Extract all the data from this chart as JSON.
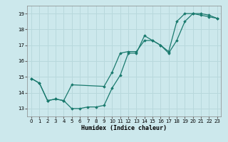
{
  "title": "",
  "xlabel": "Humidex (Indice chaleur)",
  "xlim": [
    -0.5,
    23.5
  ],
  "ylim": [
    12.5,
    19.5
  ],
  "yticks": [
    13,
    14,
    15,
    16,
    17,
    18,
    19
  ],
  "xticks": [
    0,
    1,
    2,
    3,
    4,
    5,
    6,
    7,
    8,
    9,
    10,
    11,
    12,
    13,
    14,
    15,
    16,
    17,
    18,
    19,
    20,
    21,
    22,
    23
  ],
  "line_color": "#1a7a6e",
  "bg_color": "#cce8ec",
  "grid_color": "#b8d8dc",
  "series1_x": [
    0,
    1,
    2,
    3,
    4,
    5,
    6,
    7,
    8,
    9,
    10,
    11,
    12,
    13,
    14,
    15,
    16,
    17,
    18,
    19,
    20,
    21,
    22,
    23
  ],
  "series1_y": [
    14.9,
    14.6,
    13.5,
    13.6,
    13.5,
    13.0,
    13.0,
    13.1,
    13.1,
    13.2,
    14.3,
    15.1,
    16.5,
    16.5,
    17.6,
    17.3,
    17.0,
    16.6,
    18.5,
    19.0,
    19.0,
    18.9,
    18.8,
    18.7
  ],
  "series2_x": [
    0,
    1,
    2,
    3,
    4,
    5,
    9,
    10,
    11,
    12,
    13,
    14,
    15,
    16,
    17,
    18,
    19,
    20,
    21,
    22,
    23
  ],
  "series2_y": [
    14.9,
    14.6,
    13.5,
    13.6,
    13.5,
    14.5,
    14.4,
    15.3,
    16.5,
    16.6,
    16.6,
    17.3,
    17.3,
    17.0,
    16.5,
    17.3,
    18.5,
    19.0,
    19.0,
    18.9,
    18.7
  ],
  "tick_fontsize": 5.0,
  "xlabel_fontsize": 6.0
}
